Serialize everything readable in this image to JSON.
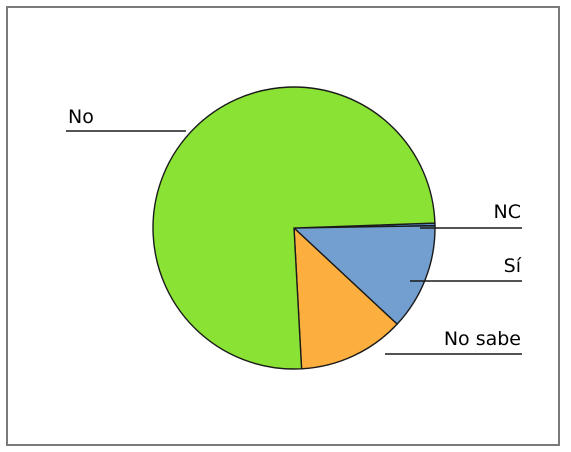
{
  "chart_data": {
    "type": "pie",
    "title": "",
    "slices": [
      {
        "label": "No",
        "value": 75.3,
        "color": "#8ae234"
      },
      {
        "label": "NC",
        "value": 0.3,
        "color": "#5a8ed1"
      },
      {
        "label": "Sí",
        "value": 12.2,
        "color": "#729fcf"
      },
      {
        "label": "No sabe",
        "value": 12.2,
        "color": "#fcaf3e"
      }
    ],
    "legend": "none"
  }
}
